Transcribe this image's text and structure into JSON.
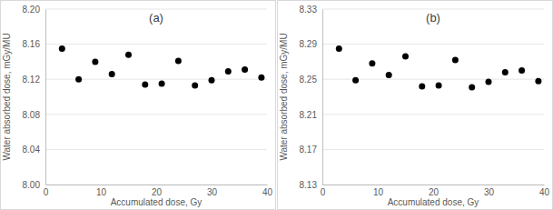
{
  "chart_data": [
    {
      "type": "scatter",
      "title": "(a)",
      "x_label": "Accumulated dose, Gy",
      "y_label": "Water absorbed dose, mGy/MU",
      "x": [
        3,
        6,
        9,
        12,
        15,
        18,
        21,
        24,
        27,
        30,
        33,
        36,
        39
      ],
      "values": [
        8.155,
        8.12,
        8.14,
        8.126,
        8.148,
        8.114,
        8.115,
        8.141,
        8.113,
        8.119,
        8.129,
        8.131,
        8.122
      ],
      "color": "#000000",
      "marker": "circle",
      "grid": true,
      "xlim": [
        0,
        40
      ],
      "xticks": [
        0,
        10,
        20,
        30,
        40
      ],
      "ylim": [
        8.0,
        8.2
      ],
      "yticks": [
        {
          "value": 8.0,
          "label": "8.00"
        },
        8.04,
        8.08,
        8.12,
        8.16,
        {
          "value": 8.2,
          "label": "8.20"
        }
      ]
    },
    {
      "type": "scatter",
      "title": "(b)",
      "x_label": "Accumulated dose, Gy",
      "y_label": "Water absorbed dose, mGy/MU",
      "x": [
        3,
        6,
        9,
        12,
        15,
        18,
        21,
        24,
        27,
        30,
        33,
        36,
        39
      ],
      "values": [
        8.285,
        8.249,
        8.268,
        8.255,
        8.276,
        8.242,
        8.243,
        8.272,
        8.241,
        8.247,
        8.258,
        8.26,
        8.248
      ],
      "color": "#000000",
      "marker": "circle",
      "grid": true,
      "xlim": [
        0,
        40
      ],
      "xticks": [
        0,
        10,
        20,
        30,
        40
      ],
      "ylim": [
        8.13,
        8.33
      ],
      "yticks": [
        8.13,
        8.17,
        8.21,
        8.25,
        8.29,
        8.33
      ]
    }
  ]
}
